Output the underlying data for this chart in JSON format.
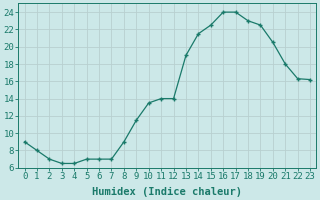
{
  "x": [
    0,
    1,
    2,
    3,
    4,
    5,
    6,
    7,
    8,
    9,
    10,
    11,
    12,
    13,
    14,
    15,
    16,
    17,
    18,
    19,
    20,
    21,
    22,
    23
  ],
  "y": [
    9,
    8,
    7,
    6.5,
    6.5,
    7,
    7,
    7,
    9,
    11.5,
    13.5,
    14,
    14,
    19,
    21.5,
    22.5,
    24,
    24,
    23,
    22.5,
    20.5,
    18,
    16.3,
    16.2
  ],
  "line_color": "#1a7a6a",
  "marker": "+",
  "bg_color": "#cce8e8",
  "grid_color": "#b8d0d0",
  "xlabel": "Humidex (Indice chaleur)",
  "ylim": [
    6,
    25
  ],
  "xlim": [
    -0.5,
    23.5
  ],
  "yticks": [
    6,
    8,
    10,
    12,
    14,
    16,
    18,
    20,
    22,
    24
  ],
  "xticks": [
    0,
    1,
    2,
    3,
    4,
    5,
    6,
    7,
    8,
    9,
    10,
    11,
    12,
    13,
    14,
    15,
    16,
    17,
    18,
    19,
    20,
    21,
    22,
    23
  ],
  "xlabel_fontsize": 7.5,
  "tick_fontsize": 6.5
}
